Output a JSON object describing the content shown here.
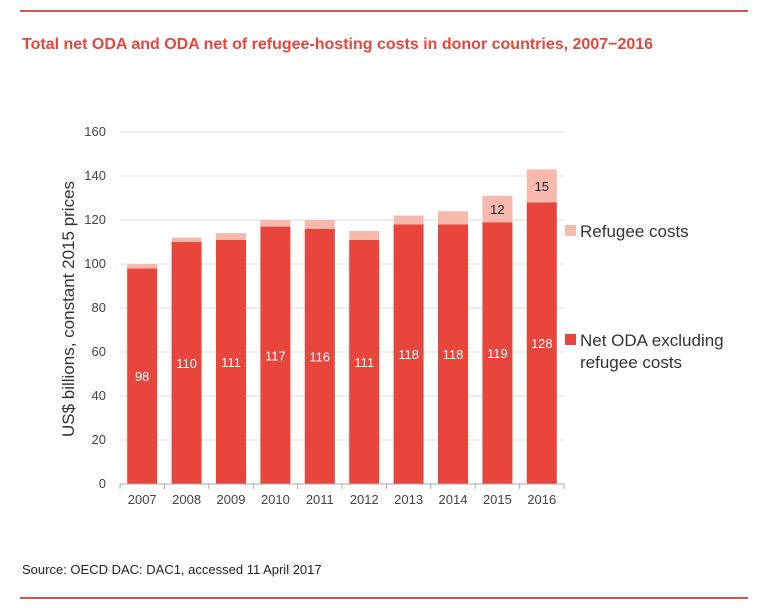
{
  "title": "Total net ODA and ODA net of refugee-hosting costs in donor countries, 2007−2016",
  "source": "Source: OECD DAC: DAC1, accessed 11 April 2017",
  "colors": {
    "net_oda": "#e8453c",
    "refugee": "#f7b9ad",
    "accent": "#e8453c"
  },
  "chart_data": {
    "type": "bar",
    "stacked": true,
    "categories": [
      "2007",
      "2008",
      "2009",
      "2010",
      "2011",
      "2012",
      "2013",
      "2014",
      "2015",
      "2016"
    ],
    "series": [
      {
        "name": "Net ODA excluding refugee costs",
        "values": [
          98,
          110,
          111,
          117,
          116,
          111,
          118,
          118,
          119,
          128
        ],
        "color": "#e8453c"
      },
      {
        "name": "Refugee costs",
        "values": [
          2,
          2,
          3,
          3,
          4,
          4,
          4,
          6,
          12,
          15
        ],
        "color": "#f7b9ad"
      }
    ],
    "labeled_refugee_values": {
      "2015": "12",
      "2016": "15"
    },
    "ylabel": "US$ billions, constant 2015 prices",
    "ylim": [
      0,
      160
    ],
    "yticks": [
      0,
      20,
      40,
      60,
      80,
      100,
      120,
      140,
      160
    ],
    "grid": true,
    "legend": {
      "position": "right",
      "items": [
        {
          "label": "Refugee costs",
          "color": "#f7b9ad"
        },
        {
          "label_line1": "Net ODA excluding",
          "label_line2": "refugee costs",
          "color": "#e8453c"
        }
      ]
    }
  }
}
